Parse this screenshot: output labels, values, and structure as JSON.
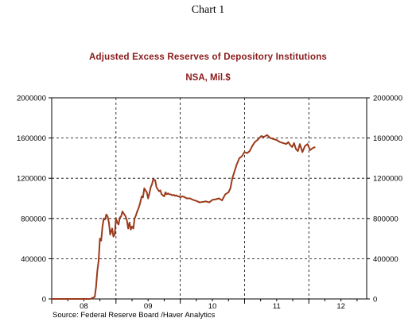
{
  "header": {
    "chart_label": "Chart 1",
    "source": "Source:  Federal Reserve Board /Haver Analytics"
  },
  "colors": {
    "line": "#9b3a1b",
    "title": "#8b1a1a"
  },
  "chart_data": {
    "type": "line",
    "title": "Adjusted Excess Reserves of Depository Institutions",
    "subtitle": "NSA, Mil.$",
    "xlabel": "",
    "ylabel": "",
    "x_tick_labels": [
      "08",
      "09",
      "10",
      "11",
      "12"
    ],
    "y_tick_labels": [
      "0",
      "400000",
      "800000",
      "1200000",
      "1600000",
      "2000000"
    ],
    "y_ticks": [
      0,
      400000,
      800000,
      1200000,
      1600000,
      2000000
    ],
    "xlim": [
      2008.0,
      2012.9
    ],
    "ylim": [
      0,
      2000000
    ],
    "grid": true,
    "series": [
      {
        "x": [
          2008.0,
          2008.1,
          2008.2,
          2008.3,
          2008.4,
          2008.5,
          2008.6,
          2008.67,
          2008.69,
          2008.71,
          2008.73,
          2008.75,
          2008.77,
          2008.79,
          2008.81,
          2008.83,
          2008.85,
          2008.87,
          2008.89,
          2008.91,
          2008.94,
          2008.96,
          2008.98,
          2009.0,
          2009.02,
          2009.04,
          2009.06,
          2009.08,
          2009.1,
          2009.12,
          2009.15,
          2009.17,
          2009.19,
          2009.21,
          2009.23,
          2009.25,
          2009.27,
          2009.29,
          2009.31,
          2009.33,
          2009.35,
          2009.37,
          2009.4,
          2009.42,
          2009.44,
          2009.46,
          2009.48,
          2009.5,
          2009.52,
          2009.54,
          2009.56,
          2009.58,
          2009.61,
          2009.63,
          2009.65,
          2009.67,
          2009.69,
          2009.71,
          2009.73,
          2009.75,
          2009.77,
          2009.79,
          2009.81,
          2009.83,
          2009.85,
          2009.88,
          2009.9,
          2009.92,
          2009.94,
          2009.96,
          2009.98,
          2010.0,
          2010.03,
          2010.06,
          2010.1,
          2010.15,
          2010.2,
          2010.25,
          2010.3,
          2010.35,
          2010.4,
          2010.45,
          2010.5,
          2010.55,
          2010.6,
          2010.65,
          2010.7,
          2010.75,
          2010.78,
          2010.81,
          2010.85,
          2010.88,
          2010.92,
          2010.96,
          2011.0,
          2011.04,
          2011.08,
          2011.12,
          2011.16,
          2011.2,
          2011.23,
          2011.26,
          2011.3,
          2011.35,
          2011.4,
          2011.45,
          2011.5,
          2011.55,
          2011.6,
          2011.65,
          2011.68,
          2011.71,
          2011.74,
          2011.77,
          2011.8,
          2011.83,
          2011.86,
          2011.9,
          2011.94,
          2011.98,
          2012.02,
          2012.06,
          2012.1
        ],
        "values": [
          0,
          0,
          0,
          0,
          0,
          0,
          0,
          20000,
          120000,
          280000,
          380000,
          600000,
          580000,
          720000,
          800000,
          790000,
          840000,
          820000,
          760000,
          640000,
          700000,
          620000,
          640000,
          800000,
          760000,
          740000,
          810000,
          820000,
          870000,
          850000,
          820000,
          780000,
          700000,
          760000,
          690000,
          720000,
          700000,
          800000,
          830000,
          870000,
          900000,
          940000,
          1020000,
          1010000,
          1100000,
          1080000,
          1060000,
          1000000,
          1050000,
          1110000,
          1140000,
          1190000,
          1180000,
          1110000,
          1090000,
          1070000,
          1080000,
          1040000,
          1030000,
          1020000,
          1060000,
          1040000,
          1050000,
          1040000,
          1040000,
          1030000,
          1035000,
          1025000,
          1030000,
          1020000,
          1020000,
          1010000,
          1020000,
          1015000,
          1000000,
          1000000,
          985000,
          975000,
          960000,
          965000,
          970000,
          960000,
          985000,
          990000,
          1000000,
          980000,
          1040000,
          1060000,
          1100000,
          1200000,
          1280000,
          1340000,
          1400000,
          1420000,
          1460000,
          1450000,
          1470000,
          1520000,
          1560000,
          1580000,
          1600000,
          1620000,
          1610000,
          1630000,
          1600000,
          1590000,
          1580000,
          1560000,
          1550000,
          1540000,
          1560000,
          1530000,
          1510000,
          1550000,
          1490000,
          1470000,
          1540000,
          1460000,
          1520000,
          1540000,
          1480000,
          1500000,
          1510000
        ]
      }
    ],
    "source": "Source:  Federal Reserve Board /Haver Analytics"
  }
}
